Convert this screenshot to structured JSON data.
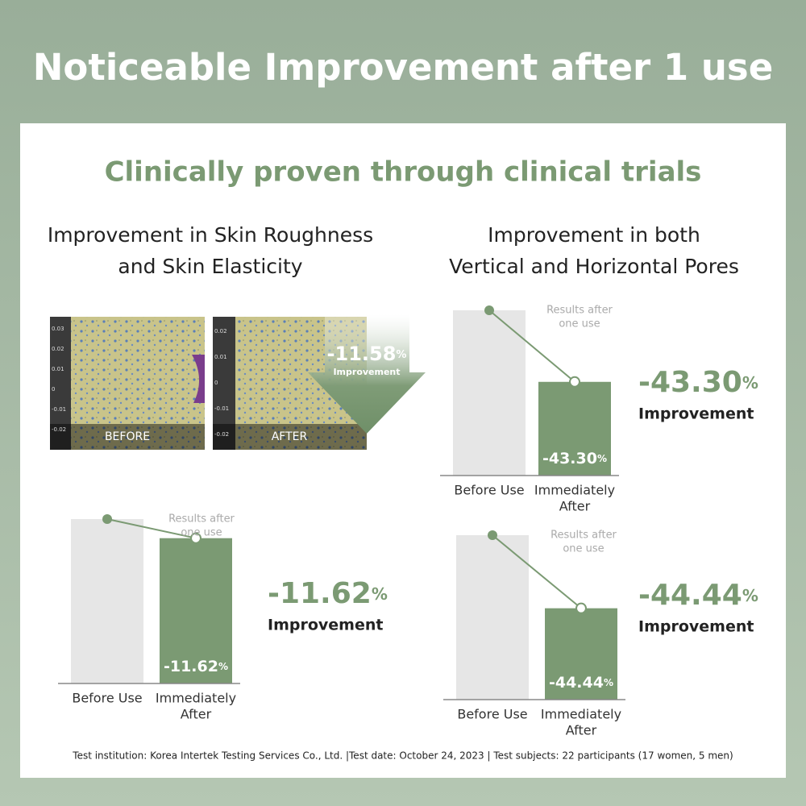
{
  "header": {
    "title": "Noticeable Improvement after 1 use"
  },
  "panel": {
    "heading": "Clinically proven through clinical trials",
    "left_title": [
      "Improvement in Skin Roughness",
      "and Skin Elasticity"
    ],
    "right_title": [
      "Improvement in both",
      "Vertical and Horizontal Pores"
    ],
    "images": {
      "before_label": "BEFORE",
      "after_label": "AFTER",
      "before_ticks": [
        "0.03",
        "0.02",
        "0.01",
        "0",
        "-0.01",
        "-0.02"
      ],
      "after_ticks": [
        "0.02",
        "0.01",
        "0",
        "-0.01",
        "-0.02"
      ],
      "badge": {
        "change": -11.58,
        "change_label": "-11.58",
        "unit": "%",
        "word": "Improvement"
      }
    },
    "charts": [
      {
        "categories": [
          [
            "Before Use"
          ],
          [
            "Immediately",
            "After"
          ]
        ],
        "note": [
          "Results after",
          "one use"
        ],
        "change": -11.62,
        "change_label": "-11.62",
        "unit": "%",
        "word": "Improvement"
      },
      {
        "categories": [
          [
            "Before Use"
          ],
          [
            "Immediately",
            "After"
          ]
        ],
        "note": [
          "Results after",
          "one use"
        ],
        "change": -43.3,
        "change_label": "-43.30",
        "unit": "%",
        "word": "Improvement"
      },
      {
        "categories": [
          [
            "Before Use"
          ],
          [
            "Immediately",
            "After"
          ]
        ],
        "note": [
          "Results after",
          "one use"
        ],
        "change": -44.44,
        "change_label": "-44.44",
        "unit": "%",
        "word": "Improvement"
      }
    ],
    "footer": "Test institution: Korea Intertek Testing Services Co., Ltd. |Test date: October 24, 2023 | Test subjects: 22 participants (17 women, 5 men)"
  }
}
